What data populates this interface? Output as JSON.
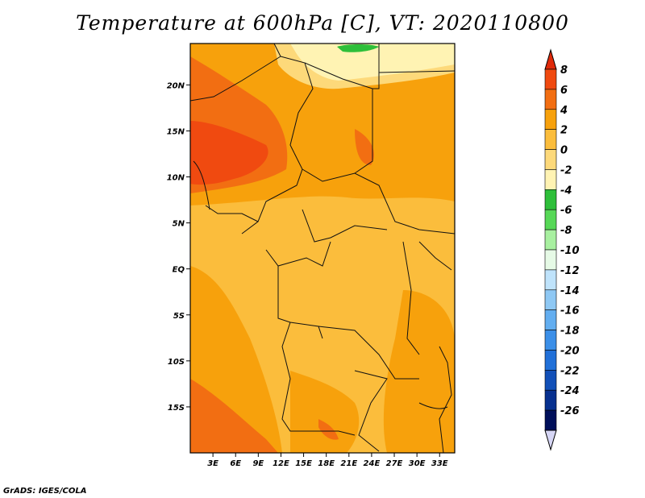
{
  "title": "Temperature at 600hPa [C], VT: 2020110800",
  "credit": "GrADS: IGES/COLA",
  "map": {
    "region": "Central Africa",
    "lat_ticks": [
      "20N",
      "15N",
      "10N",
      "5N",
      "EQ",
      "5S",
      "10S",
      "15S"
    ],
    "lat_values": [
      20,
      15,
      10,
      5,
      0,
      -5,
      -10,
      -15
    ],
    "lon_ticks": [
      "3E",
      "6E",
      "9E",
      "12E",
      "15E",
      "18E",
      "21E",
      "24E",
      "27E",
      "30E",
      "33E"
    ],
    "lon_values": [
      3,
      6,
      9,
      12,
      15,
      18,
      21,
      24,
      27,
      30,
      33
    ],
    "lon_range": [
      0,
      35
    ],
    "lat_range": [
      -20,
      24.5
    ]
  },
  "colorbar": {
    "levels": [
      "8",
      "6",
      "4",
      "2",
      "0",
      "-2",
      "-4",
      "-6",
      "-8",
      "-10",
      "-12",
      "-14",
      "-16",
      "-18",
      "-20",
      "-22",
      "-24",
      "-26"
    ],
    "colors": [
      "#e02a0a",
      "#f04a10",
      "#f26e12",
      "#f7a10c",
      "#fbbd3c",
      "#fdd97a",
      "#fff3b3",
      "#2ebf3a",
      "#57d857",
      "#a8f0a0",
      "#e6fae6",
      "#bfe3fb",
      "#8ec8f4",
      "#63aef0",
      "#3b8fe8",
      "#2170d8",
      "#1250b8",
      "#07308f",
      "#000f5a",
      "#d6d6f5"
    ]
  },
  "field_colors": {
    "warm_red": "#f04a10",
    "orange": "#f26e12",
    "light_orange": "#f7a10c",
    "amber": "#fbbd3c",
    "pale": "#fdd97a",
    "cream": "#fff3b3",
    "green": "#2ebf3a"
  }
}
